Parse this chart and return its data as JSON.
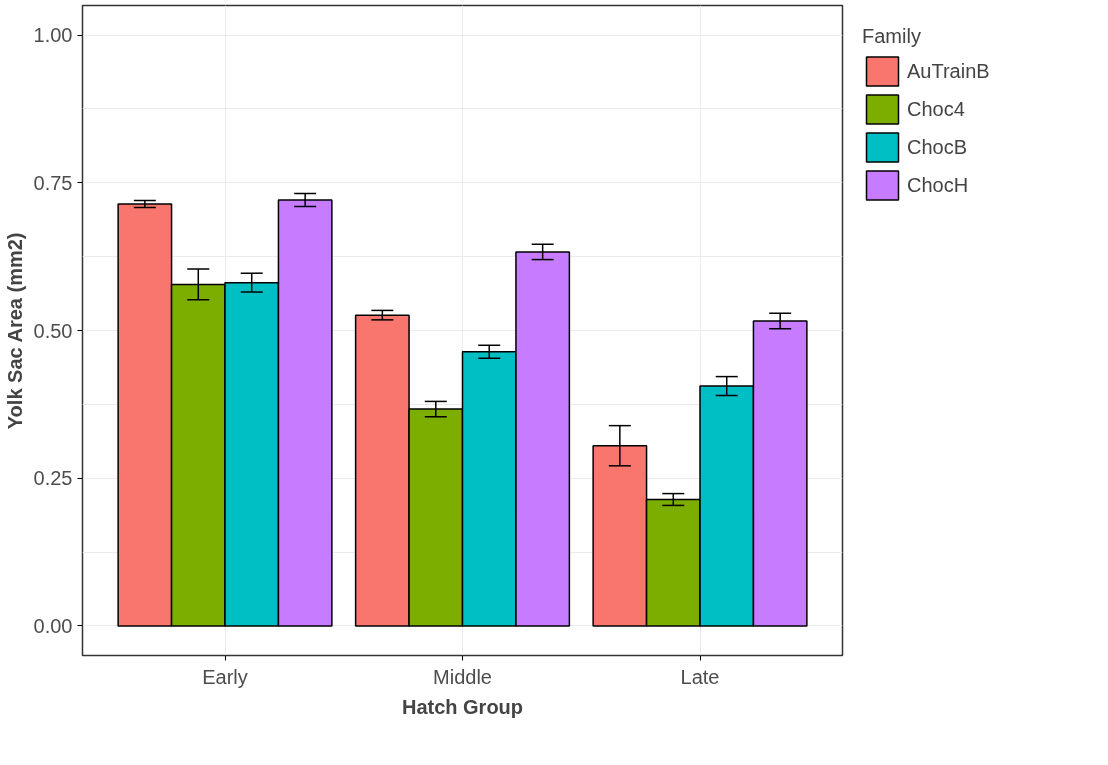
{
  "chart_data": {
    "type": "bar",
    "xlabel": "Hatch Group",
    "ylabel": "Yolk Sac Area (mm2)",
    "legend_title": "Family",
    "categories": [
      "Early",
      "Middle",
      "Late"
    ],
    "series": [
      {
        "name": "AuTrainB",
        "color": "#f8766d",
        "values": [
          0.714,
          0.526,
          0.305
        ],
        "errors": [
          0.006,
          0.008,
          0.034
        ]
      },
      {
        "name": "Choc4",
        "color": "#7cae00",
        "values": [
          0.578,
          0.367,
          0.214
        ],
        "errors": [
          0.026,
          0.013,
          0.01
        ]
      },
      {
        "name": "ChocB",
        "color": "#00bfc4",
        "values": [
          0.581,
          0.464,
          0.406
        ],
        "errors": [
          0.016,
          0.011,
          0.016
        ]
      },
      {
        "name": "ChocH",
        "color": "#c77cff",
        "values": [
          0.721,
          0.633,
          0.516
        ],
        "errors": [
          0.011,
          0.013,
          0.013
        ]
      }
    ],
    "ylim": [
      -0.05,
      1.05
    ],
    "yticks": [
      {
        "value": 0,
        "label": "0.00"
      },
      0.25,
      {
        "value": 0.5,
        "label": "0.50"
      },
      0.75,
      {
        "value": 1,
        "label": "1.00"
      }
    ],
    "grid": true,
    "legend": "right"
  }
}
